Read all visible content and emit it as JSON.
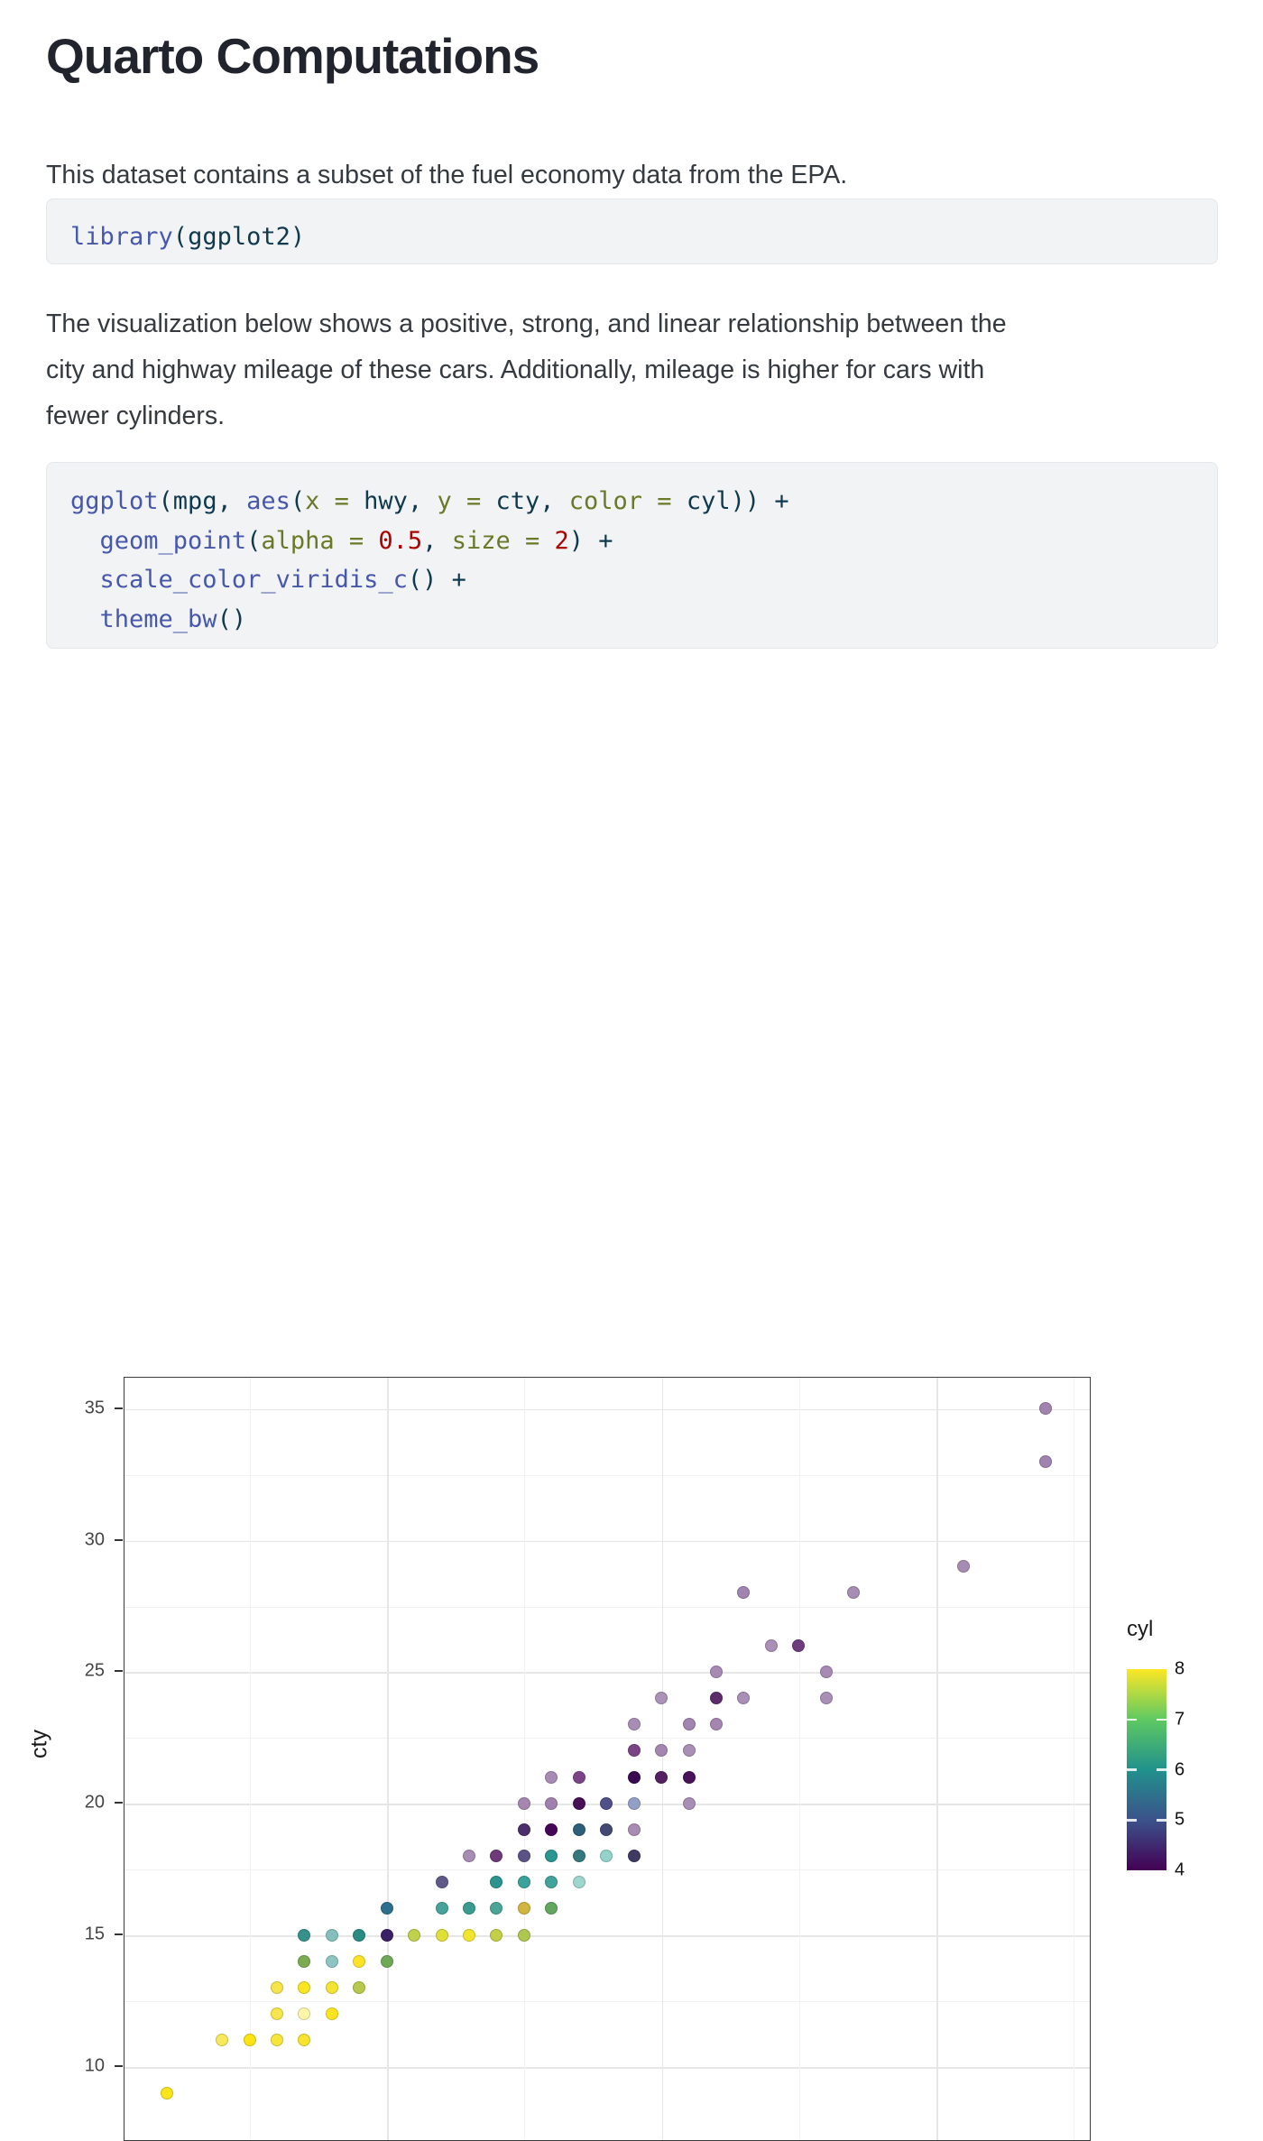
{
  "title": "Quarto Computations",
  "paragraph1": "This dataset contains a subset of the fuel economy data from the EPA.",
  "paragraph2_lines": [
    "The visualization below shows a positive, strong, and linear relationship between the",
    "city and highway mileage of these cars. Additionally, mileage is higher for cars with",
    "fewer cylinders."
  ],
  "syntax_colors": {
    "fu": "#4758ab",
    "tx": "#10394d",
    "at": "#687a28",
    "nu": "#ad0000"
  },
  "code_blocks": [
    {
      "name": "library-block",
      "lines": [
        [
          {
            "t": "library",
            "c": "fu"
          },
          {
            "t": "(",
            "c": "tx"
          },
          {
            "t": "ggplot2",
            "c": "tx"
          },
          {
            "t": ")",
            "c": "tx"
          }
        ]
      ]
    },
    {
      "name": "ggplot-block",
      "lines": [
        [
          {
            "t": "ggplot",
            "c": "fu"
          },
          {
            "t": "(mpg, ",
            "c": "tx"
          },
          {
            "t": "aes",
            "c": "fu"
          },
          {
            "t": "(",
            "c": "tx"
          },
          {
            "t": "x = ",
            "c": "at"
          },
          {
            "t": "hwy, ",
            "c": "tx"
          },
          {
            "t": "y = ",
            "c": "at"
          },
          {
            "t": "cty, ",
            "c": "tx"
          },
          {
            "t": "color = ",
            "c": "at"
          },
          {
            "t": "cyl)) +",
            "c": "tx"
          }
        ],
        [
          {
            "t": "  ",
            "c": "tx"
          },
          {
            "t": "geom_point",
            "c": "fu"
          },
          {
            "t": "(",
            "c": "tx"
          },
          {
            "t": "alpha = ",
            "c": "at"
          },
          {
            "t": "0.5",
            "c": "nu"
          },
          {
            "t": ", ",
            "c": "tx"
          },
          {
            "t": "size = ",
            "c": "at"
          },
          {
            "t": "2",
            "c": "nu"
          },
          {
            "t": ") +",
            "c": "tx"
          }
        ],
        [
          {
            "t": "  ",
            "c": "tx"
          },
          {
            "t": "scale_color_viridis_c",
            "c": "fu"
          },
          {
            "t": "() +",
            "c": "tx"
          }
        ],
        [
          {
            "t": "  ",
            "c": "tx"
          },
          {
            "t": "theme_bw",
            "c": "fu"
          },
          {
            "t": "()",
            "c": "tx"
          }
        ]
      ]
    }
  ],
  "chart_data": {
    "type": "scatter",
    "x_field": "hwy",
    "y_field": "cty",
    "color_field": "cyl",
    "ylabel": "cty",
    "xlim": [
      10.4,
      45.6
    ],
    "ylim": [
      7.7,
      36.3
    ],
    "y_ticks": [
      35,
      30,
      25,
      20,
      15,
      10
    ],
    "y_minor_gridlines": [
      12.5,
      17.5,
      22.5,
      27.5,
      32.5
    ],
    "x_major_gridlines": [
      20,
      30,
      40
    ],
    "x_minor_gridlines": [
      15,
      25,
      35,
      45
    ],
    "grid": true,
    "legend": {
      "title": "cyl",
      "labels": [
        "8",
        "7",
        "6",
        "5",
        "4"
      ],
      "values": [
        8,
        7,
        6,
        5,
        4
      ],
      "viridis_stops": [
        "#fde725",
        "#5ec962",
        "#21918c",
        "#3b528b",
        "#440154"
      ],
      "position": "right"
    },
    "point_alpha": 0.5,
    "points": [
      [
        44,
        35,
        "#a183af"
      ],
      [
        44,
        33,
        "#a183af"
      ],
      [
        41,
        29,
        "#a78cb3"
      ],
      [
        33,
        28,
        "#a284b0"
      ],
      [
        37,
        28,
        "#a78cb3"
      ],
      [
        34,
        26,
        "#aa90b7"
      ],
      [
        35,
        26,
        "#6d3c7e"
      ],
      [
        32,
        25,
        "#a78ab4"
      ],
      [
        36,
        25,
        "#a78ab4"
      ],
      [
        30,
        24,
        "#ab92b8"
      ],
      [
        32,
        24,
        "#5c2c6b"
      ],
      [
        33,
        24,
        "#a98fb6"
      ],
      [
        36,
        24,
        "#a98fb6"
      ],
      [
        29,
        23,
        "#a88db5"
      ],
      [
        31,
        23,
        "#a284b0"
      ],
      [
        32,
        23,
        "#a586b1"
      ],
      [
        29,
        22,
        "#7b4486"
      ],
      [
        30,
        22,
        "#a586b1"
      ],
      [
        31,
        22,
        "#ab8eb6"
      ],
      [
        26,
        21,
        "#a88bb4"
      ],
      [
        27,
        21,
        "#7b4486"
      ],
      [
        29,
        21,
        "#3b0a52"
      ],
      [
        30,
        21,
        "#542063"
      ],
      [
        31,
        21,
        "#4a1258"
      ],
      [
        25,
        20,
        "#a586b0"
      ],
      [
        26,
        20,
        "#a081ad"
      ],
      [
        27,
        20,
        "#461157"
      ],
      [
        28,
        20,
        "#50508a"
      ],
      [
        29,
        20,
        "#92a0c6"
      ],
      [
        31,
        20,
        "#a88db5"
      ],
      [
        25,
        19,
        "#4b2f6b"
      ],
      [
        26,
        19,
        "#45065a"
      ],
      [
        27,
        19,
        "#2e5f78"
      ],
      [
        28,
        19,
        "#434873"
      ],
      [
        29,
        19,
        "#a78cb4"
      ],
      [
        23,
        18,
        "#a78cb4"
      ],
      [
        24,
        18,
        "#6e3a79"
      ],
      [
        25,
        18,
        "#5b5387"
      ],
      [
        26,
        18,
        "#2a968f"
      ],
      [
        27,
        18,
        "#35797e"
      ],
      [
        28,
        18,
        "#93d3c8"
      ],
      [
        29,
        18,
        "#3f3a63"
      ],
      [
        22,
        17,
        "#5f5a8a"
      ],
      [
        24,
        17,
        "#2c948e"
      ],
      [
        25,
        17,
        "#3aa29a"
      ],
      [
        26,
        17,
        "#42a39b"
      ],
      [
        27,
        17,
        "#9ed5cc"
      ],
      [
        20,
        16,
        "#2e6f8e"
      ],
      [
        22,
        16,
        "#47a29b"
      ],
      [
        23,
        16,
        "#3a9b90"
      ],
      [
        24,
        16,
        "#4aa596"
      ],
      [
        25,
        16,
        "#d2b53e"
      ],
      [
        26,
        16,
        "#63a75f"
      ],
      [
        17,
        15,
        "#35918b"
      ],
      [
        18,
        15,
        "#84bfbc"
      ],
      [
        19,
        15,
        "#2a8b85"
      ],
      [
        20,
        15,
        "#3c2066"
      ],
      [
        21,
        15,
        "#c0d14c"
      ],
      [
        22,
        15,
        "#e0df38"
      ],
      [
        23,
        15,
        "#f2e52e"
      ],
      [
        24,
        15,
        "#c4cf48"
      ],
      [
        25,
        15,
        "#adc751"
      ],
      [
        17,
        14,
        "#7cac52"
      ],
      [
        18,
        14,
        "#8ec4c1"
      ],
      [
        19,
        14,
        "#fce32a"
      ],
      [
        20,
        14,
        "#6fa957"
      ],
      [
        16,
        13,
        "#f6e44a"
      ],
      [
        17,
        13,
        "#fae522"
      ],
      [
        18,
        13,
        "#f3e333"
      ],
      [
        19,
        13,
        "#b8c84c"
      ],
      [
        16,
        12,
        "#f6e64b"
      ],
      [
        17,
        12,
        "#fdf6aa"
      ],
      [
        18,
        12,
        "#fce51f"
      ],
      [
        14,
        11,
        "#f7e85e"
      ],
      [
        15,
        11,
        "#fbe314"
      ],
      [
        16,
        11,
        "#f8e53c"
      ],
      [
        17,
        11,
        "#f8e32e"
      ],
      [
        12,
        9,
        "#fbe41c"
      ]
    ]
  }
}
